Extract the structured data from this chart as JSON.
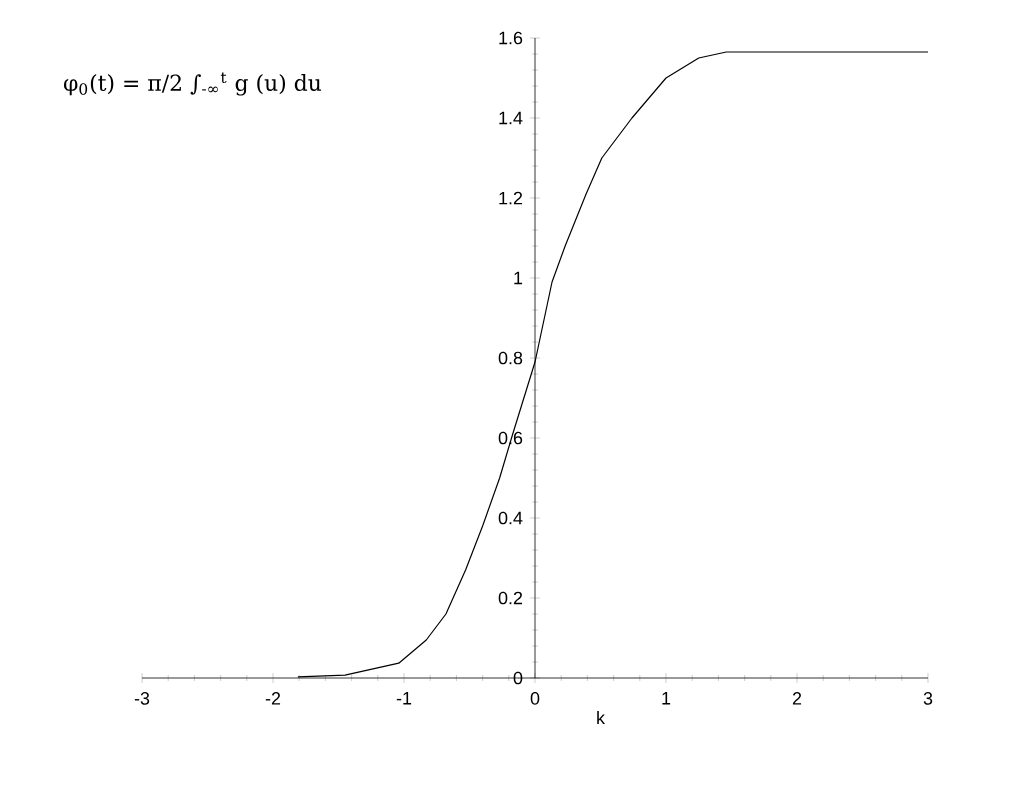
{
  "chart_data": {
    "type": "line",
    "xlabel": "k",
    "annotations": [
      "φ$_{0}$(t) = π/2 ∫$_{-∞}$$^{t}$ g (u) du"
    ],
    "xlim": [
      -3,
      3
    ],
    "ylim": [
      0,
      1.6
    ],
    "xticks": [
      -3,
      -2,
      -1,
      0,
      1,
      2,
      3
    ],
    "yticks": [
      0,
      0.2,
      0.4,
      0.6,
      0.8,
      1,
      1.2,
      1.4,
      1.6
    ],
    "series": [
      {
        "color": "#000000",
        "x": [
          -1.81,
          -1.45,
          -1.04,
          -0.83,
          -0.68,
          -0.53,
          -0.4,
          -0.27,
          -0.17,
          0,
          0.13,
          0.23,
          0.39,
          0.51,
          0.74,
          1.0,
          1.25,
          1.46,
          3
        ],
        "values": [
          0.003,
          0.007,
          0.037,
          0.095,
          0.16,
          0.27,
          0.38,
          0.5,
          0.61,
          0.79,
          0.99,
          1.08,
          1.21,
          1.3,
          1.4,
          1.5,
          1.55,
          1.565,
          1.565
        ]
      }
    ]
  }
}
